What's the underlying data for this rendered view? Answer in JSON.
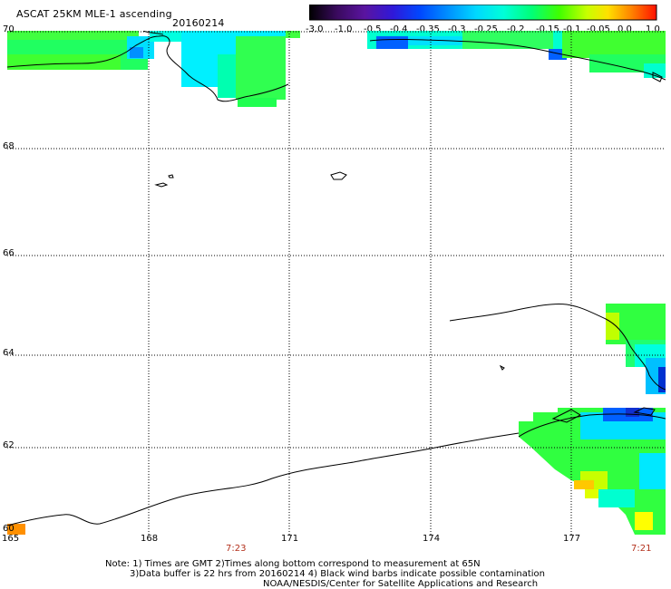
{
  "header": {
    "title": "ASCAT 25KM MLE-1 ascending",
    "date": "20160214"
  },
  "colorbar": {
    "tick_labels": [
      "-3.0",
      "-1.0",
      "-0.5",
      "-0.4",
      "-0.35",
      "-0.3",
      "-0.25",
      "-0.2",
      "-0.15",
      "-0.1",
      "-0.05",
      "0.0",
      "1.0"
    ],
    "colors": [
      "#000000",
      "#3a0a5e",
      "#5a14a0",
      "#3018d8",
      "#0048ff",
      "#0090ff",
      "#00d8ff",
      "#00ffd8",
      "#00ff78",
      "#40ff00",
      "#c8ff00",
      "#ffe000",
      "#ff8000",
      "#ff1000"
    ]
  },
  "map": {
    "lat_labels": [
      "70",
      "68",
      "66",
      "64",
      "62",
      "60"
    ],
    "lon_labels": [
      "165",
      "168",
      "171",
      "174",
      "177"
    ],
    "time_labels": [
      "7:23",
      "7:21"
    ],
    "colors": {
      "land_outline": "#000000",
      "grid": "#000000",
      "time_label": "#b4321e"
    }
  },
  "notes": {
    "line1": "Note: 1) Times are GMT 2)Times along bottom correspond to measurement at 65N",
    "line2": "3)Data buffer is 22 hrs from 20160214 4) Black wind barbs indicate possible contamination",
    "line3": "NOAA/NESDIS/Center for Satellite Applications and Research"
  }
}
